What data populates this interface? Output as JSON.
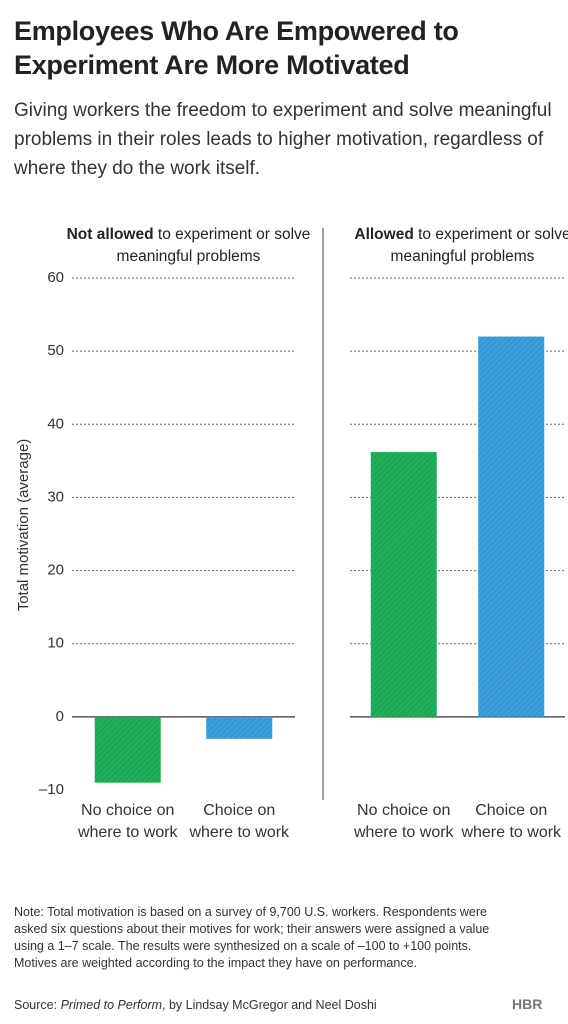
{
  "header": {
    "title": "Employees Who Are Empowered to Experiment Are More Motivated",
    "subtitle": "Giving workers the freedom to experiment and solve meaningful problems in their roles leads to higher motivation, regardless of where they do the work itself."
  },
  "chart_data": {
    "type": "bar",
    "y_label": "Total motivation (average)",
    "ylim": [
      -10,
      60
    ],
    "yticks": [
      {
        "value": -10,
        "label": "–10"
      },
      0,
      10,
      20,
      30,
      40,
      50,
      60
    ],
    "grid": true,
    "panels": [
      {
        "title_bold": "Not allowed",
        "title_rest": "to experiment or solve meaningful problems",
        "categories": [
          "No choice on where to work",
          "Choice on where to work"
        ],
        "values": [
          -9,
          -3
        ],
        "colors": [
          "#1fb15a",
          "#3b9fde"
        ]
      },
      {
        "title_bold": "Allowed",
        "title_rest": "to experiment or solve meaningful problems",
        "categories": [
          "No choice on where to work",
          "Choice on where to work"
        ],
        "values": [
          36.2,
          52
        ],
        "colors": [
          "#1fb15a",
          "#3b9fde"
        ]
      }
    ]
  },
  "footer": {
    "note": "Note: Total motivation is based on a survey of 9,700 U.S. workers. Respondents were asked six questions about their motives for work; their answers were assigned a value using a 1–7 scale. The results were synthesized on a scale of –100 to +100 points. Motives are weighted according to the impact they have on performance.",
    "source_prefix": "Source:",
    "source_book": "Primed to Perform",
    "source_rest": ", by Lindsay McGregor and Neel Doshi",
    "logo": "HBR"
  }
}
